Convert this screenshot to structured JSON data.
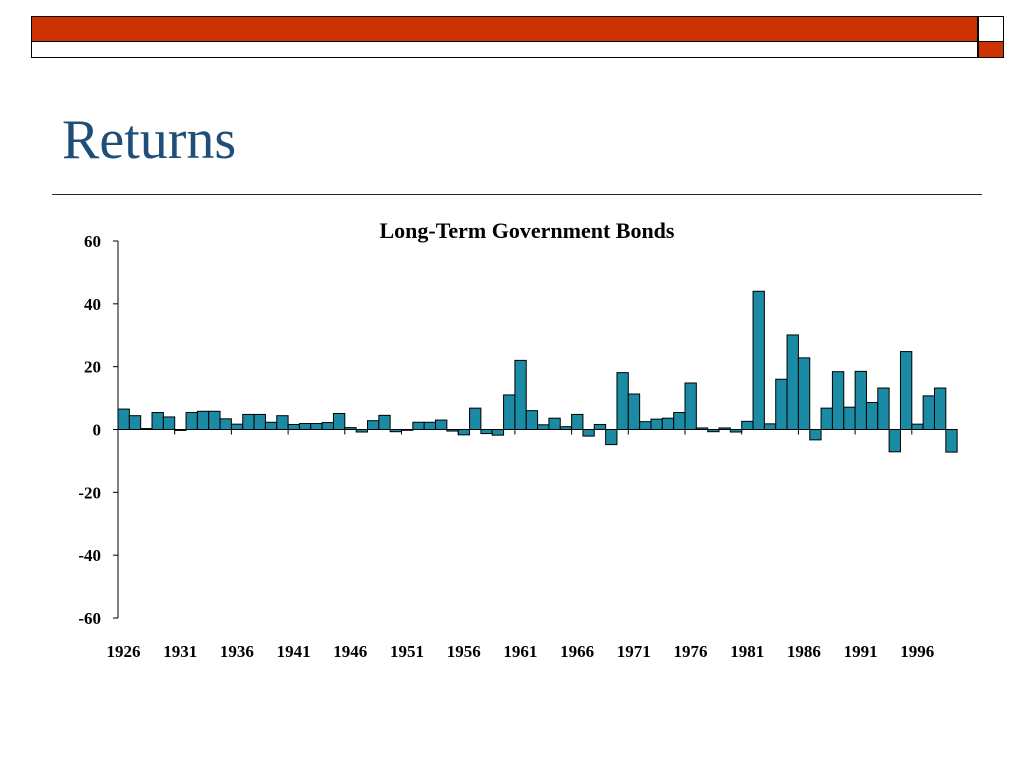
{
  "slide": {
    "title": "Returns"
  },
  "chart_data": {
    "type": "bar",
    "title": "Long-Term Government Bonds",
    "xlabel": "",
    "ylabel": "",
    "ylim": [
      -60,
      60
    ],
    "yticks": [
      60,
      40,
      20,
      0,
      -20,
      -40,
      -60
    ],
    "xtick_labels": [
      "1926",
      "1931",
      "1936",
      "1941",
      "1946",
      "1951",
      "1956",
      "1961",
      "1966",
      "1971",
      "1976",
      "1981",
      "1986",
      "1991",
      "1996"
    ],
    "bar_color": "#1b8aa4",
    "categories": [
      1926,
      1927,
      1928,
      1929,
      1930,
      1931,
      1932,
      1933,
      1934,
      1935,
      1936,
      1937,
      1938,
      1939,
      1940,
      1941,
      1942,
      1943,
      1944,
      1945,
      1946,
      1947,
      1948,
      1949,
      1950,
      1951,
      1952,
      1953,
      1954,
      1955,
      1956,
      1957,
      1958,
      1959,
      1960,
      1961,
      1962,
      1963,
      1964,
      1965,
      1966,
      1967,
      1968,
      1969,
      1970,
      1971,
      1972,
      1973,
      1974,
      1975,
      1976,
      1977,
      1978,
      1979,
      1980,
      1981,
      1982,
      1983,
      1984,
      1985,
      1986,
      1987,
      1988,
      1989,
      1990,
      1991,
      1992,
      1993,
      1994,
      1995,
      1996,
      1997,
      1998,
      1999
    ],
    "values": [
      6.5,
      4.4,
      0.3,
      5.4,
      4.0,
      -0.3,
      5.4,
      5.8,
      5.8,
      3.4,
      1.7,
      4.8,
      4.8,
      2.3,
      4.4,
      1.6,
      1.9,
      1.9,
      2.2,
      5.1,
      0.6,
      -0.8,
      2.8,
      4.5,
      -0.7,
      -0.1,
      2.3,
      2.3,
      3.0,
      -0.5,
      -1.7,
      6.8,
      -1.3,
      -1.8,
      11.0,
      22.0,
      6.0,
      1.5,
      3.6,
      0.9,
      4.8,
      -2.1,
      1.6,
      -4.8,
      18.1,
      11.3,
      2.5,
      3.3,
      3.6,
      5.4,
      14.8,
      0.5,
      -0.7,
      0.5,
      -0.8,
      2.6,
      44.0,
      1.8,
      16.0,
      30.1,
      22.8,
      -3.3,
      6.8,
      18.4,
      7.1,
      18.5,
      8.6,
      13.2,
      -7.1,
      24.8,
      1.7,
      10.7,
      13.2,
      -7.2
    ]
  }
}
